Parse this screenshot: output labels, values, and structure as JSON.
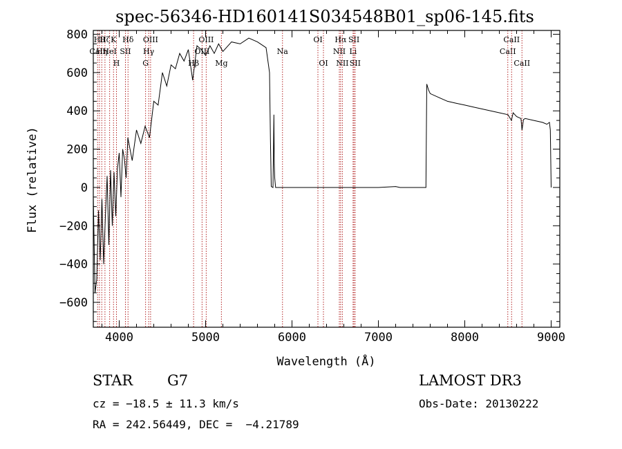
{
  "chart_data": {
    "type": "line",
    "title": "spec-56346-HD160141S034548B01_sp06-145.fits",
    "xlabel": "Wavelength (Å)",
    "ylabel": "Flux (relative)",
    "xlim": [
      3700,
      9100
    ],
    "ylim": [
      -730,
      820
    ],
    "x_ticks": [
      4000,
      5000,
      6000,
      7000,
      8000,
      9000
    ],
    "y_ticks": [
      -600,
      -400,
      -200,
      0,
      200,
      400,
      600,
      800
    ],
    "grid": false,
    "series": [
      {
        "x": [
          3700,
          3720,
          3740,
          3760,
          3780,
          3800,
          3820,
          3840,
          3860,
          3880,
          3900,
          3920,
          3940,
          3960,
          3980,
          4000,
          4020,
          4040,
          4060,
          4080,
          4100,
          4150,
          4200,
          4250,
          4300,
          4350,
          4400,
          4450,
          4500,
          4550,
          4600,
          4650,
          4700,
          4750,
          4800,
          4850,
          4900,
          4950,
          5000,
          5050,
          5100,
          5150,
          5200,
          5300,
          5400,
          5500,
          5600,
          5700,
          5740,
          5750,
          5760,
          5780,
          5790,
          5795,
          5800,
          5810,
          5900,
          6000,
          6500,
          7000,
          7200,
          7250,
          7300,
          7400,
          7500,
          7550,
          7560,
          7580,
          7600,
          7700,
          7800,
          7900,
          8000,
          8100,
          8200,
          8300,
          8400,
          8500,
          8540,
          8560,
          8600,
          8650,
          8662,
          8680,
          8700,
          8800,
          8900,
          8950,
          8980,
          8990,
          9000
        ],
        "y": [
          -50,
          -550,
          -480,
          -120,
          -380,
          -60,
          -400,
          -150,
          60,
          -300,
          90,
          -200,
          80,
          -150,
          100,
          180,
          -50,
          200,
          150,
          50,
          260,
          140,
          300,
          230,
          320,
          260,
          450,
          430,
          600,
          530,
          640,
          620,
          700,
          660,
          720,
          560,
          740,
          720,
          690,
          740,
          700,
          750,
          710,
          760,
          750,
          780,
          760,
          730,
          600,
          250,
          5,
          0,
          380,
          120,
          50,
          0,
          0,
          0,
          0,
          0,
          5,
          0,
          0,
          0,
          0,
          0,
          540,
          510,
          490,
          470,
          450,
          440,
          430,
          420,
          410,
          400,
          390,
          380,
          350,
          390,
          370,
          360,
          300,
          355,
          360,
          350,
          340,
          330,
          340,
          300,
          0
        ]
      }
    ],
    "line_markers": [
      {
        "wavelength": 3750,
        "label": "CaII",
        "row": 2
      },
      {
        "wavelength": 3771,
        "label": "Hθ",
        "row": 1
      },
      {
        "wavelength": 3798,
        "label": "Hη",
        "row": 2
      },
      {
        "wavelength": 3835,
        "label": "Hζ",
        "row": 1
      },
      {
        "wavelength": 3889,
        "label": "HeI",
        "row": 2
      },
      {
        "wavelength": 3934,
        "label": "K",
        "row": 1
      },
      {
        "wavelength": 3968,
        "label": "H",
        "row": 3
      },
      {
        "wavelength": 4072,
        "label": "SII",
        "row": 2
      },
      {
        "wavelength": 4102,
        "label": "Hδ",
        "row": 1
      },
      {
        "wavelength": 4305,
        "label": "G",
        "row": 3
      },
      {
        "wavelength": 4341,
        "label": "Hγ",
        "row": 2
      },
      {
        "wavelength": 4363,
        "label": "OIII",
        "row": 1
      },
      {
        "wavelength": 4861,
        "label": "Hβ",
        "row": 3
      },
      {
        "wavelength": 4959,
        "label": "OIII",
        "row": 2
      },
      {
        "wavelength": 5007,
        "label": "OIII",
        "row": 1
      },
      {
        "wavelength": 5183,
        "label": "Mg",
        "row": 3
      },
      {
        "wavelength": 5890,
        "label": "Na",
        "row": 2
      },
      {
        "wavelength": 6300,
        "label": "OI",
        "row": 1
      },
      {
        "wavelength": 6364,
        "label": "OI",
        "row": 3
      },
      {
        "wavelength": 6548,
        "label": "NII",
        "row": 2
      },
      {
        "wavelength": 6563,
        "label": "Hα",
        "row": 1
      },
      {
        "wavelength": 6583,
        "label": "NII",
        "row": 3
      },
      {
        "wavelength": 6707,
        "label": "Li",
        "row": 2
      },
      {
        "wavelength": 6717,
        "label": "SII",
        "row": 1
      },
      {
        "wavelength": 6731,
        "label": "SII",
        "row": 3
      },
      {
        "wavelength": 8498,
        "label": "CaII",
        "row": 2
      },
      {
        "wavelength": 8542,
        "label": "CaII",
        "row": 1
      },
      {
        "wavelength": 8662,
        "label": "CaII",
        "row": 3
      }
    ],
    "colors": {
      "line": "#000000",
      "markers": "#b22222"
    }
  },
  "info": {
    "class": "STAR",
    "subclass": "G7",
    "survey": "LAMOST DR3",
    "cz": "cz = −18.5 ± 11.3 km/s",
    "obs_date": "Obs-Date: 20130222",
    "coords": "RA = 242.56449, DEC =  −4.21789"
  }
}
